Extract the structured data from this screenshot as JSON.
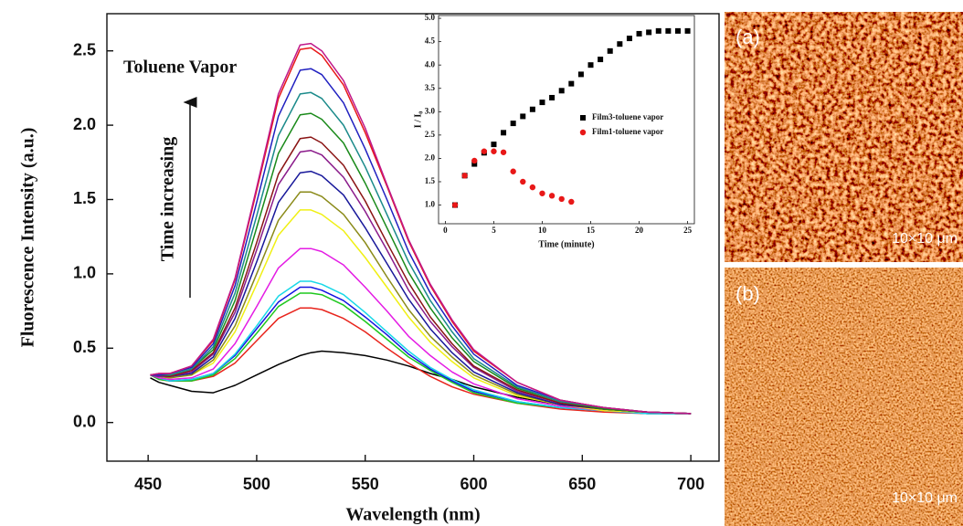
{
  "chart_data": [
    {
      "type": "line",
      "xlabel": "Wavelength (nm)",
      "ylabel": "Fluorescence Intensity (a.u.)",
      "annotations": [
        "Toluene Vapor",
        "Time increasing"
      ],
      "xlim": [
        431,
        713
      ],
      "xticks": [
        450,
        500,
        550,
        600,
        650,
        700
      ],
      "ylim": [
        -0.26,
        2.75
      ],
      "yticks": [
        {
          "value": 0,
          "label": "0.0"
        },
        0.5,
        {
          "value": 1,
          "label": "1.0"
        },
        1.5,
        {
          "value": 2,
          "label": "2.0"
        },
        2.5
      ],
      "x": [
        451,
        455,
        460,
        470,
        480,
        490,
        500,
        510,
        520,
        525,
        530,
        540,
        550,
        560,
        570,
        580,
        590,
        600,
        620,
        640,
        660,
        680,
        700
      ],
      "series": [
        {
          "color": "#000000",
          "values": [
            0.3,
            0.27,
            0.25,
            0.21,
            0.2,
            0.25,
            0.32,
            0.39,
            0.45,
            0.47,
            0.48,
            0.47,
            0.45,
            0.42,
            0.38,
            0.33,
            0.29,
            0.24,
            0.17,
            0.12,
            0.09,
            0.07,
            0.06
          ]
        },
        {
          "color": "#e8241c",
          "values": [
            0.32,
            0.29,
            0.28,
            0.28,
            0.31,
            0.4,
            0.55,
            0.7,
            0.77,
            0.77,
            0.76,
            0.7,
            0.61,
            0.5,
            0.4,
            0.31,
            0.24,
            0.19,
            0.13,
            0.09,
            0.07,
            0.06,
            0.06
          ]
        },
        {
          "color": "#1ec81e",
          "values": [
            0.32,
            0.29,
            0.28,
            0.28,
            0.32,
            0.43,
            0.6,
            0.78,
            0.87,
            0.87,
            0.86,
            0.79,
            0.68,
            0.56,
            0.44,
            0.35,
            0.27,
            0.2,
            0.13,
            0.1,
            0.08,
            0.06,
            0.06
          ]
        },
        {
          "color": "#1414e0",
          "values": [
            0.32,
            0.3,
            0.28,
            0.29,
            0.33,
            0.45,
            0.63,
            0.81,
            0.91,
            0.91,
            0.89,
            0.82,
            0.71,
            0.59,
            0.46,
            0.36,
            0.28,
            0.21,
            0.14,
            0.1,
            0.08,
            0.06,
            0.06
          ]
        },
        {
          "color": "#18d8e8",
          "values": [
            0.32,
            0.3,
            0.28,
            0.29,
            0.33,
            0.46,
            0.65,
            0.85,
            0.95,
            0.95,
            0.93,
            0.86,
            0.74,
            0.61,
            0.48,
            0.37,
            0.29,
            0.22,
            0.14,
            0.1,
            0.08,
            0.06,
            0.06
          ]
        },
        {
          "color": "#e41ce4",
          "values": [
            0.32,
            0.3,
            0.29,
            0.3,
            0.36,
            0.53,
            0.78,
            1.04,
            1.17,
            1.17,
            1.15,
            1.06,
            0.91,
            0.75,
            0.58,
            0.45,
            0.34,
            0.26,
            0.16,
            0.11,
            0.08,
            0.07,
            0.06
          ]
        },
        {
          "color": "#f0f014",
          "values": [
            0.32,
            0.31,
            0.3,
            0.32,
            0.4,
            0.61,
            0.93,
            1.26,
            1.43,
            1.43,
            1.4,
            1.29,
            1.11,
            0.91,
            0.71,
            0.54,
            0.41,
            0.3,
            0.18,
            0.12,
            0.08,
            0.07,
            0.06
          ]
        },
        {
          "color": "#8a8a18",
          "values": [
            0.32,
            0.31,
            0.3,
            0.32,
            0.42,
            0.65,
            1.0,
            1.36,
            1.55,
            1.55,
            1.52,
            1.4,
            1.21,
            0.98,
            0.76,
            0.58,
            0.44,
            0.32,
            0.19,
            0.12,
            0.09,
            0.07,
            0.06
          ]
        },
        {
          "color": "#18189a",
          "values": [
            0.32,
            0.31,
            0.31,
            0.33,
            0.44,
            0.7,
            1.08,
            1.48,
            1.68,
            1.69,
            1.66,
            1.53,
            1.31,
            1.07,
            0.83,
            0.63,
            0.47,
            0.34,
            0.2,
            0.12,
            0.09,
            0.07,
            0.06
          ]
        },
        {
          "color": "#8a1a8a",
          "values": [
            0.32,
            0.31,
            0.31,
            0.34,
            0.46,
            0.74,
            1.16,
            1.6,
            1.82,
            1.83,
            1.8,
            1.65,
            1.42,
            1.16,
            0.89,
            0.68,
            0.51,
            0.37,
            0.21,
            0.13,
            0.09,
            0.07,
            0.06
          ]
        },
        {
          "color": "#8a1414",
          "values": [
            0.32,
            0.32,
            0.31,
            0.35,
            0.47,
            0.77,
            1.21,
            1.67,
            1.91,
            1.92,
            1.88,
            1.73,
            1.49,
            1.21,
            0.94,
            0.71,
            0.53,
            0.38,
            0.22,
            0.13,
            0.09,
            0.07,
            0.06
          ]
        },
        {
          "color": "#1a8a1a",
          "values": [
            0.32,
            0.32,
            0.32,
            0.36,
            0.49,
            0.82,
            1.31,
            1.81,
            2.07,
            2.08,
            2.04,
            1.88,
            1.61,
            1.31,
            1.01,
            0.77,
            0.57,
            0.41,
            0.23,
            0.14,
            0.09,
            0.07,
            0.06
          ]
        },
        {
          "color": "#1a8a8a",
          "values": [
            0.32,
            0.32,
            0.32,
            0.36,
            0.51,
            0.87,
            1.39,
            1.93,
            2.21,
            2.22,
            2.18,
            2.0,
            1.72,
            1.4,
            1.08,
            0.82,
            0.61,
            0.43,
            0.24,
            0.14,
            0.1,
            0.07,
            0.06
          ]
        },
        {
          "color": "#2020c0",
          "values": [
            0.32,
            0.32,
            0.33,
            0.37,
            0.53,
            0.92,
            1.48,
            2.06,
            2.37,
            2.38,
            2.34,
            2.15,
            1.84,
            1.5,
            1.15,
            0.87,
            0.65,
            0.46,
            0.25,
            0.15,
            0.1,
            0.07,
            0.06
          ]
        },
        {
          "color": "#e81818",
          "values": [
            0.32,
            0.33,
            0.33,
            0.38,
            0.55,
            0.96,
            1.56,
            2.18,
            2.51,
            2.52,
            2.47,
            2.27,
            1.95,
            1.59,
            1.22,
            0.92,
            0.68,
            0.48,
            0.27,
            0.15,
            0.1,
            0.07,
            0.06
          ]
        },
        {
          "color": "#c0188a",
          "values": [
            0.32,
            0.33,
            0.33,
            0.38,
            0.56,
            0.97,
            1.58,
            2.21,
            2.54,
            2.55,
            2.5,
            2.3,
            1.98,
            1.6,
            1.23,
            0.93,
            0.69,
            0.49,
            0.27,
            0.15,
            0.1,
            0.07,
            0.06
          ]
        }
      ]
    },
    {
      "type": "scatter",
      "xlabel": "Time (minute)",
      "ylabel": "I / I₀",
      "legend": "center right",
      "xlim": [
        -0.7,
        25.7
      ],
      "xticks": [
        0,
        5,
        10,
        15,
        20,
        25
      ],
      "ylim": [
        0.6,
        5.06
      ],
      "yticks": [
        {
          "value": 1,
          "label": "1.0"
        },
        1.5,
        {
          "value": 2,
          "label": "2.0"
        },
        2.5,
        {
          "value": 3,
          "label": "3.0"
        },
        3.5,
        {
          "value": 4,
          "label": "4.0"
        },
        4.5,
        {
          "value": 5,
          "label": "5.0"
        }
      ],
      "series": [
        {
          "name": "Film3-toluene vapor",
          "color": "#000000",
          "marker": "square",
          "x": [
            1,
            2,
            3,
            4,
            5,
            6,
            7,
            8,
            9,
            10,
            11,
            12,
            13,
            14,
            15,
            16,
            17,
            18,
            19,
            20,
            21,
            22,
            23,
            24,
            25
          ],
          "values": [
            1.0,
            1.63,
            1.88,
            2.12,
            2.3,
            2.55,
            2.75,
            2.9,
            3.05,
            3.2,
            3.3,
            3.45,
            3.6,
            3.8,
            4.0,
            4.12,
            4.3,
            4.45,
            4.57,
            4.67,
            4.7,
            4.73,
            4.73,
            4.73,
            4.73
          ]
        },
        {
          "name": "Film1-toluene vapor",
          "color": "#e81818",
          "marker": "circle",
          "x": [
            1,
            2,
            3,
            4,
            5,
            6,
            7,
            8,
            9,
            10,
            11,
            12,
            13
          ],
          "values": [
            1.0,
            1.63,
            1.95,
            2.15,
            2.15,
            2.13,
            1.72,
            1.5,
            1.38,
            1.25,
            1.2,
            1.13,
            1.07
          ]
        }
      ]
    }
  ],
  "panels": [
    {
      "label": "(a)",
      "scale": "10×10 μm"
    },
    {
      "label": "(b)",
      "scale": "10×10 μm"
    }
  ]
}
